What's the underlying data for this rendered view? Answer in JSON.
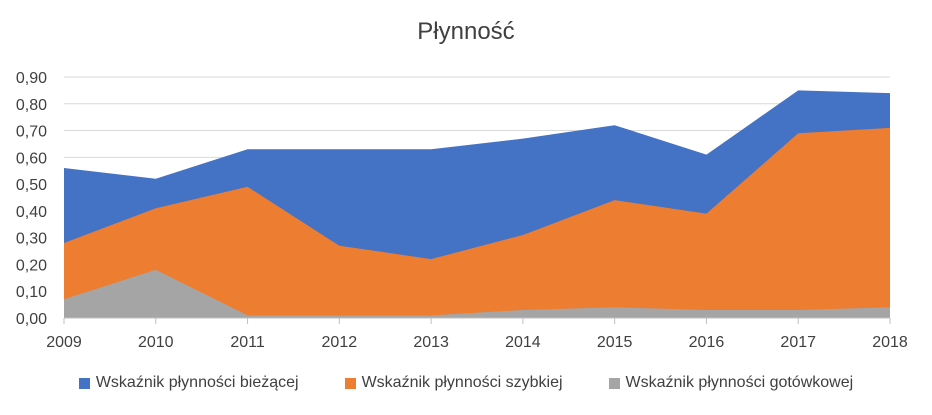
{
  "chart_data": {
    "type": "area",
    "title": "Płynność",
    "categories": [
      "2009",
      "2010",
      "2011",
      "2012",
      "2013",
      "2014",
      "2015",
      "2016",
      "2017",
      "2018"
    ],
    "ylim": [
      0,
      0.9
    ],
    "yticks": [
      "0,00",
      "0,10",
      "0,20",
      "0,30",
      "0,40",
      "0,50",
      "0,60",
      "0,70",
      "0,80",
      "0,90"
    ],
    "grid": true,
    "legend_position": "bottom",
    "series": [
      {
        "name": "Wskaźnik płynności bieżącej",
        "color": "#4472C4",
        "values": [
          0.56,
          0.52,
          0.63,
          0.63,
          0.63,
          0.67,
          0.72,
          0.61,
          0.85,
          0.84
        ]
      },
      {
        "name": "Wskaźnik płynności szybkiej",
        "color": "#ED7D31",
        "values": [
          0.28,
          0.41,
          0.49,
          0.27,
          0.22,
          0.31,
          0.44,
          0.39,
          0.69,
          0.71
        ]
      },
      {
        "name": "Wskaźnik płynności gotówkowej",
        "color": "#A5A5A5",
        "values": [
          0.07,
          0.18,
          0.01,
          0.01,
          0.01,
          0.03,
          0.04,
          0.03,
          0.03,
          0.04
        ]
      }
    ]
  }
}
